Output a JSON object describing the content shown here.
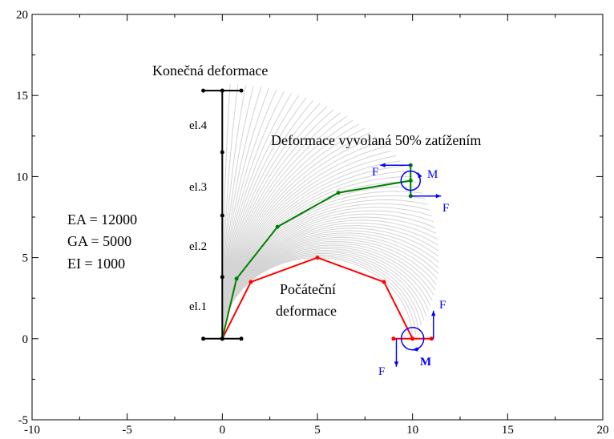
{
  "chart_data": {
    "type": "line",
    "xlim": [
      -10,
      20
    ],
    "ylim": [
      -5,
      20
    ],
    "xticks": [
      -10,
      -5,
      0,
      5,
      10,
      15,
      20
    ],
    "yticks": [
      -5,
      0,
      5,
      10,
      15,
      20
    ],
    "grid": false,
    "series": [
      {
        "color": "#ff0000",
        "x": [
          0,
          1.5,
          5,
          8.5,
          10
        ],
        "y": [
          0,
          3.5,
          5,
          3.5,
          0
        ]
      },
      {
        "color": "#008000",
        "x": [
          0,
          0.75,
          2.9,
          6.1,
          9.9
        ],
        "y": [
          0,
          3.7,
          6.9,
          9.0,
          9.75
        ]
      },
      {
        "color": "#000000",
        "x": [
          0,
          0,
          0,
          0,
          0
        ],
        "y": [
          0,
          3.8,
          7.6,
          11.5,
          15.3
        ]
      }
    ],
    "background_fan": {
      "color": "#d3d3d3",
      "description_free": true
    },
    "annotations": {
      "final_label": "Konečná deformace",
      "half_load_label": "Deformace vyvolaná 50% zatížením",
      "initial_label_line1": "Počáteční",
      "initial_label_line2": "deformace",
      "params": [
        "EA = 12000",
        "GA = 5000",
        "EI = 1000"
      ],
      "elements": [
        "el.1",
        "el.2",
        "el.3",
        "el.4"
      ],
      "force_label": "F",
      "moment_label": "M"
    }
  },
  "colors": {
    "initial": "#ff0000",
    "half": "#008000",
    "final": "#000000",
    "load": "#0000ff",
    "fan": "#d3d3d3"
  }
}
